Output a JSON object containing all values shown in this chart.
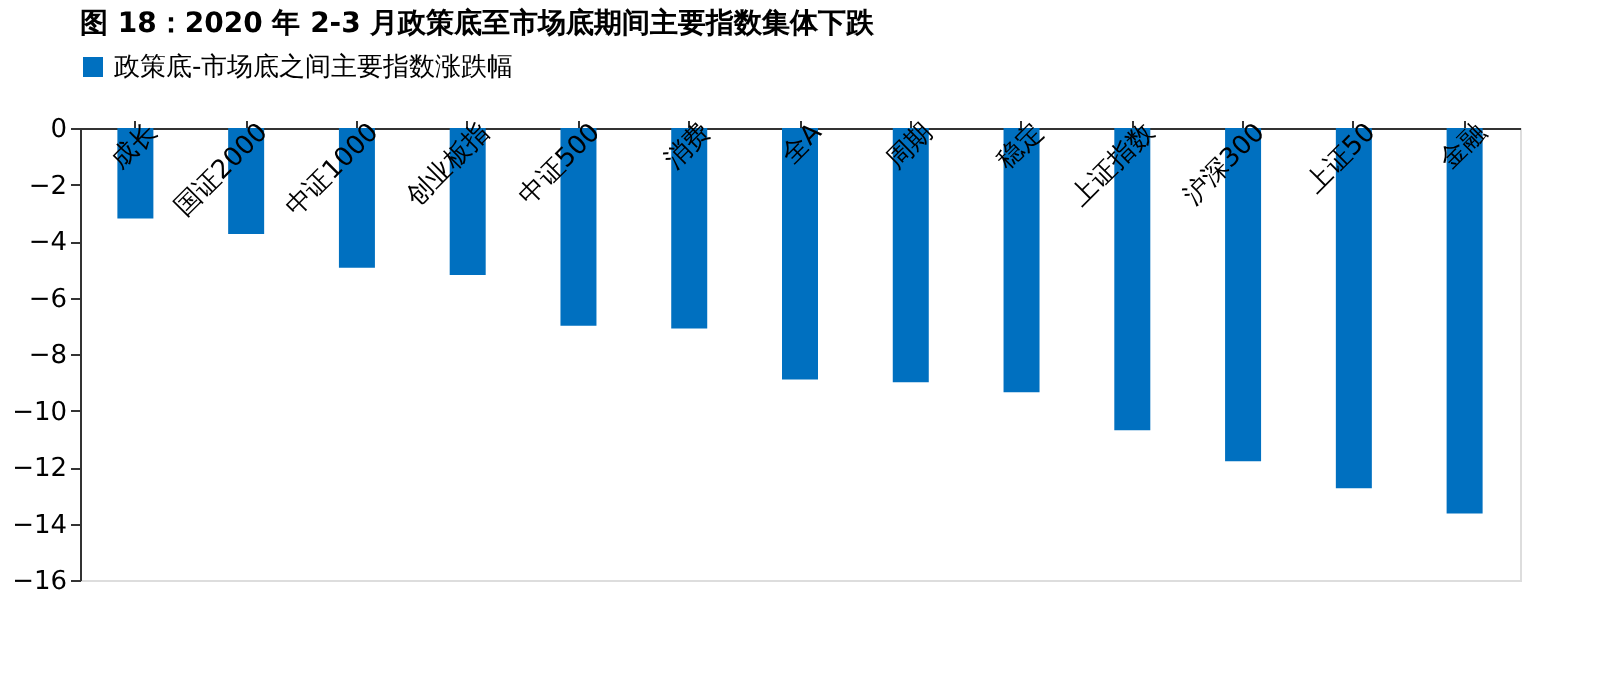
{
  "chart_data": {
    "type": "bar",
    "title": "图 18：2020 年 2-3 月政策底至市场底期间主要指数集体下跌",
    "categories": [
      "成长",
      "国证2000",
      "中证1000",
      "创业板指",
      "中证500",
      "消费",
      "全A",
      "周期",
      "稳定",
      "上证指数",
      "沪深300",
      "上证50",
      "金融"
    ],
    "series": [
      {
        "name": "政策底-市场底之间主要指数涨跌幅",
        "color": "#0070c0",
        "values": [
          -3.2,
          -3.75,
          -4.95,
          -5.2,
          -7.0,
          -7.1,
          -8.9,
          -9.0,
          -9.35,
          -10.7,
          -11.8,
          -12.75,
          -13.65
        ]
      }
    ],
    "ylim": [
      -16,
      0
    ],
    "yticks": [
      -16,
      -14,
      -12,
      -10,
      -8,
      -6,
      -4,
      -2,
      0
    ],
    "grid": false,
    "legend": "top"
  }
}
